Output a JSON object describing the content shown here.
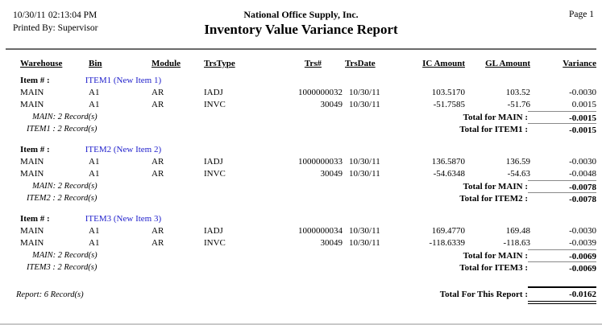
{
  "header": {
    "date": "10/30/11",
    "time": "02:13:04 PM",
    "printed_by_label": "Printed By:",
    "printed_by_value": "Supervisor",
    "company": "National Office Supply, Inc.",
    "report_title": "Inventory Value Variance Report",
    "page": "Page 1"
  },
  "table": {
    "item_row_label": "Item # :",
    "columns": {
      "warehouse": "Warehouse",
      "bin": "Bin",
      "module": "Module",
      "trstype": "TrsType",
      "trsnum": "Trs#",
      "trsdate": "TrsDate",
      "ic": "IC Amount",
      "gl": "GL Amount",
      "variance": "Variance"
    },
    "groups": [
      {
        "item": "ITEM1 (New Item 1)",
        "rows": [
          {
            "warehouse": "MAIN",
            "bin": "A1",
            "module": "AR",
            "trstype": "IADJ",
            "trsnum": "1000000032",
            "trsdate": "10/30/11",
            "ic": "103.5170",
            "gl": "103.52",
            "variance": "-0.0030"
          },
          {
            "warehouse": "MAIN",
            "bin": "A1",
            "module": "AR",
            "trstype": "INVC",
            "trsnum": "30049",
            "trsdate": "10/30/11",
            "ic": "-51.7585",
            "gl": "-51.76",
            "variance": "0.0015"
          }
        ],
        "warehouse_summary": "MAIN: 2 Record(s)",
        "warehouse_total_label": "Total for MAIN :",
        "warehouse_total": "-0.0015",
        "item_summary": "ITEM1 : 2 Record(s)",
        "item_total_label": "Total for ITEM1 :",
        "item_total": "-0.0015"
      },
      {
        "item": "ITEM2 (New Item 2)",
        "rows": [
          {
            "warehouse": "MAIN",
            "bin": "A1",
            "module": "AR",
            "trstype": "IADJ",
            "trsnum": "1000000033",
            "trsdate": "10/30/11",
            "ic": "136.5870",
            "gl": "136.59",
            "variance": "-0.0030"
          },
          {
            "warehouse": "MAIN",
            "bin": "A1",
            "module": "AR",
            "trstype": "INVC",
            "trsnum": "30049",
            "trsdate": "10/30/11",
            "ic": "-54.6348",
            "gl": "-54.63",
            "variance": "-0.0048"
          }
        ],
        "warehouse_summary": "MAIN: 2 Record(s)",
        "warehouse_total_label": "Total for MAIN :",
        "warehouse_total": "-0.0078",
        "item_summary": "ITEM2 : 2 Record(s)",
        "item_total_label": "Total for ITEM2 :",
        "item_total": "-0.0078"
      },
      {
        "item": "ITEM3 (New Item 3)",
        "rows": [
          {
            "warehouse": "MAIN",
            "bin": "A1",
            "module": "AR",
            "trstype": "IADJ",
            "trsnum": "1000000034",
            "trsdate": "10/30/11",
            "ic": "169.4770",
            "gl": "169.48",
            "variance": "-0.0030"
          },
          {
            "warehouse": "MAIN",
            "bin": "A1",
            "module": "AR",
            "trstype": "INVC",
            "trsnum": "30049",
            "trsdate": "10/30/11",
            "ic": "-118.6339",
            "gl": "-118.63",
            "variance": "-0.0039"
          }
        ],
        "warehouse_summary": "MAIN: 2 Record(s)",
        "warehouse_total_label": "Total for MAIN :",
        "warehouse_total": "-0.0069",
        "item_summary": "ITEM3 : 2 Record(s)",
        "item_total_label": "Total for ITEM3 :",
        "item_total": "-0.0069"
      }
    ],
    "report_summary": "Report: 6 Record(s)",
    "report_total_label": "Total For This Report :",
    "report_total": "-0.0162"
  },
  "colors": {
    "item_name_blue": "#2222cc",
    "rule_gray": "#6a6a6a",
    "total_line_gray": "#8a8a8a"
  }
}
